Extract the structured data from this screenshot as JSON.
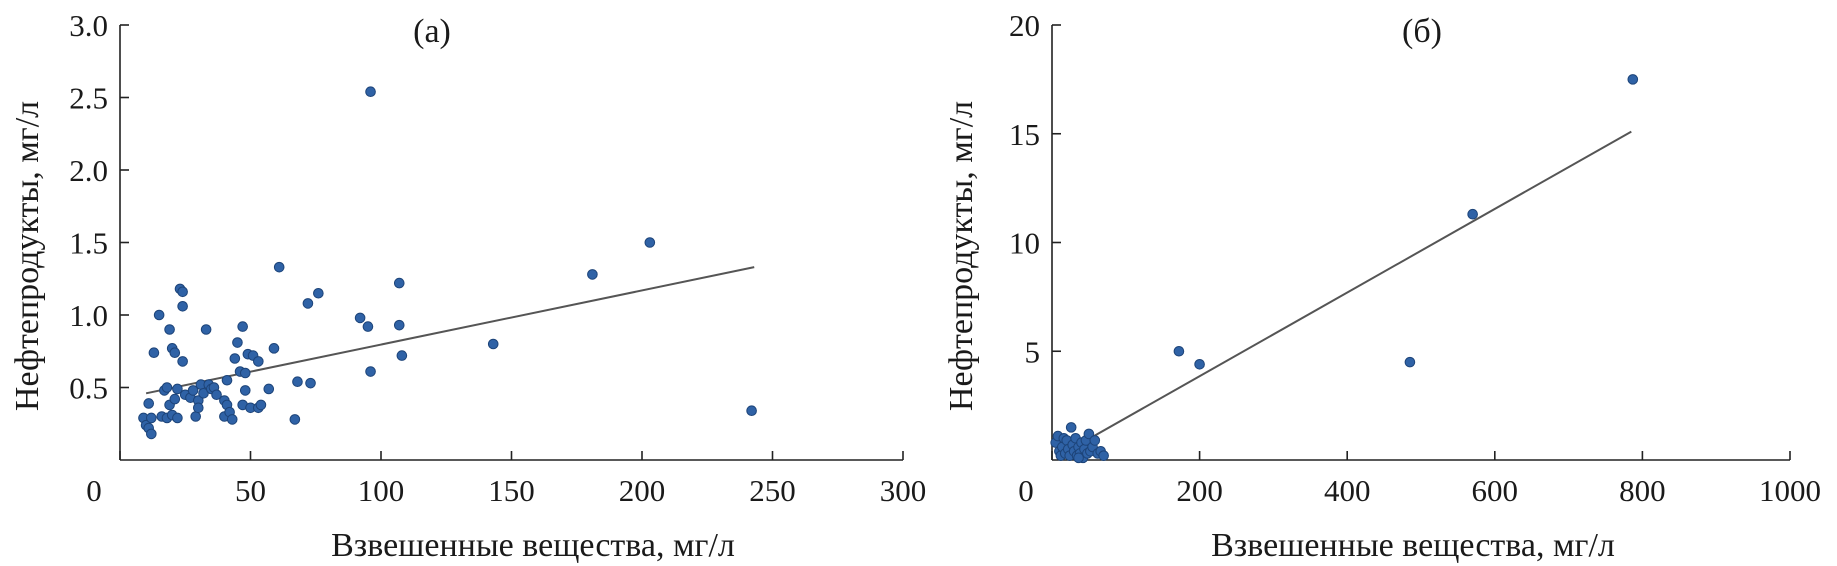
{
  "colors": {
    "point": "#2f62a6",
    "point_edge": "#1d4479",
    "trend": "#555555",
    "axis": "#222222"
  },
  "chart_data": [
    {
      "type": "scatter",
      "title": "(а)",
      "xlabel": "Взвешенные вещества, мг/л",
      "ylabel": "Нефтепродукты, мг/л",
      "xlim": [
        0,
        300
      ],
      "ylim": [
        0,
        3.0
      ],
      "xticks": [
        0,
        50,
        100,
        150,
        200,
        250,
        300
      ],
      "xtick_labels": [
        "0",
        "50",
        "100",
        "150",
        "200",
        "250",
        "300"
      ],
      "yticks": [
        0.5,
        1.0,
        1.5,
        2.0,
        2.5,
        3.0
      ],
      "ytick_labels": [
        "0.5",
        "1.0",
        "1.5",
        "2.0",
        "2.5",
        "3.0"
      ],
      "trendline": {
        "x": [
          10,
          243
        ],
        "y": [
          0.46,
          1.33
        ]
      },
      "series": [
        {
          "name": "observations",
          "points": [
            [
              9,
              0.29
            ],
            [
              10,
              0.24
            ],
            [
              11,
              0.22
            ],
            [
              12,
              0.18
            ],
            [
              11,
              0.39
            ],
            [
              12,
              0.29
            ],
            [
              13,
              0.74
            ],
            [
              15,
              1.0
            ],
            [
              16,
              0.3
            ],
            [
              17,
              0.48
            ],
            [
              18,
              0.5
            ],
            [
              18,
              0.29
            ],
            [
              19,
              0.38
            ],
            [
              19,
              0.9
            ],
            [
              20,
              0.31
            ],
            [
              20,
              0.77
            ],
            [
              21,
              0.74
            ],
            [
              21,
              0.42
            ],
            [
              22,
              0.49
            ],
            [
              22,
              0.29
            ],
            [
              23,
              1.18
            ],
            [
              24,
              1.06
            ],
            [
              24,
              1.16
            ],
            [
              24,
              0.68
            ],
            [
              25,
              0.45
            ],
            [
              27,
              0.43
            ],
            [
              28,
              0.48
            ],
            [
              29,
              0.3
            ],
            [
              30,
              0.41
            ],
            [
              30,
              0.36
            ],
            [
              31,
              0.52
            ],
            [
              32,
              0.46
            ],
            [
              33,
              0.9
            ],
            [
              34,
              0.52
            ],
            [
              35,
              0.49
            ],
            [
              36,
              0.5
            ],
            [
              37,
              0.45
            ],
            [
              40,
              0.3
            ],
            [
              40,
              0.41
            ],
            [
              41,
              0.38
            ],
            [
              41,
              0.55
            ],
            [
              42,
              0.33
            ],
            [
              43,
              0.28
            ],
            [
              44,
              0.7
            ],
            [
              45,
              0.81
            ],
            [
              46,
              0.61
            ],
            [
              47,
              0.92
            ],
            [
              47,
              0.38
            ],
            [
              48,
              0.6
            ],
            [
              48,
              0.48
            ],
            [
              49,
              0.73
            ],
            [
              50,
              0.36
            ],
            [
              51,
              0.72
            ],
            [
              53,
              0.36
            ],
            [
              53,
              0.68
            ],
            [
              54,
              0.38
            ],
            [
              57,
              0.49
            ],
            [
              59,
              0.77
            ],
            [
              61,
              1.33
            ],
            [
              67,
              0.28
            ],
            [
              68,
              0.54
            ],
            [
              72,
              1.08
            ],
            [
              73,
              0.53
            ],
            [
              76,
              1.15
            ],
            [
              92,
              0.98
            ],
            [
              95,
              0.92
            ],
            [
              96,
              0.61
            ],
            [
              96,
              2.54
            ],
            [
              107,
              1.22
            ],
            [
              107,
              0.93
            ],
            [
              108,
              0.72
            ],
            [
              143,
              0.8
            ],
            [
              181,
              1.28
            ],
            [
              203,
              1.5
            ],
            [
              242,
              0.34
            ]
          ]
        }
      ]
    },
    {
      "type": "scatter",
      "title": "(б)",
      "xlabel": "Взвешенные вещества, мг/л",
      "ylabel": "Нефтепродукты, мг/л",
      "xlim": [
        0,
        1000
      ],
      "ylim": [
        0,
        20
      ],
      "xticks": [
        0,
        200,
        400,
        600,
        800,
        1000
      ],
      "xtick_labels": [
        "0",
        "200",
        "400",
        "600",
        "800",
        "1000"
      ],
      "yticks": [
        5,
        10,
        15,
        20
      ],
      "ytick_labels": [
        "5",
        "10",
        "15",
        "20"
      ],
      "trendline": {
        "x": [
          10,
          785
        ],
        "y": [
          0.2,
          15.1
        ]
      },
      "series": [
        {
          "name": "observations",
          "points": [
            [
              5,
              0.8
            ],
            [
              8,
              1.1
            ],
            [
              10,
              0.4
            ],
            [
              12,
              0.2
            ],
            [
              14,
              0.6
            ],
            [
              16,
              1.0
            ],
            [
              18,
              0.3
            ],
            [
              20,
              0.9
            ],
            [
              22,
              0.5
            ],
            [
              24,
              0.2
            ],
            [
              26,
              1.5
            ],
            [
              28,
              0.7
            ],
            [
              30,
              0.4
            ],
            [
              32,
              1.0
            ],
            [
              34,
              0.2
            ],
            [
              36,
              0.6
            ],
            [
              38,
              0.3
            ],
            [
              40,
              0.8
            ],
            [
              42,
              0.1
            ],
            [
              44,
              0.5
            ],
            [
              46,
              0.9
            ],
            [
              48,
              0.3
            ],
            [
              50,
              1.2
            ],
            [
              52,
              0.4
            ],
            [
              55,
              0.6
            ],
            [
              58,
              0.9
            ],
            [
              62,
              0.3
            ],
            [
              66,
              0.4
            ],
            [
              70,
              0.2
            ],
            [
              36,
              0.1
            ],
            [
              172,
              5.0
            ],
            [
              200,
              4.4
            ],
            [
              485,
              4.5
            ],
            [
              570,
              11.3
            ],
            [
              787,
              17.5
            ]
          ]
        }
      ]
    }
  ]
}
